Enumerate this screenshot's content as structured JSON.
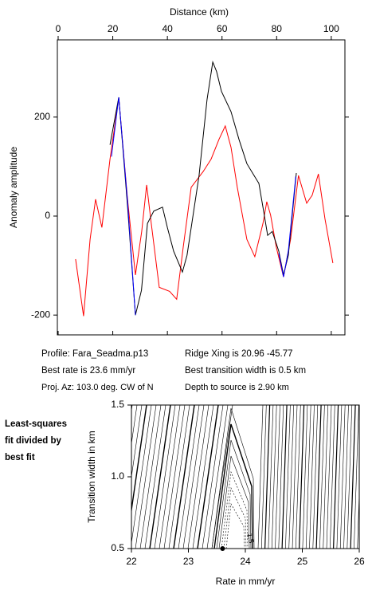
{
  "chart_data": [
    {
      "type": "line",
      "x_label": "Distance (km)",
      "y_label": "Anomaly amplitude",
      "xlim": [
        0,
        105
      ],
      "xticks": [
        0,
        20,
        40,
        60,
        80,
        100
      ],
      "ylim": [
        -240,
        356
      ],
      "yticks": [
        -200,
        0,
        200
      ],
      "series": [
        {
          "color": "#ff0000",
          "x": [
            6.4,
            9.3,
            11.7,
            13.7,
            16,
            19,
            22.2,
            25.4,
            28.3,
            30.6,
            32.4,
            34.1,
            37,
            40.8,
            43.4,
            45.8,
            48.7,
            53.1,
            56,
            58.9,
            61.2,
            63.3,
            65.6,
            69.1,
            72,
            75,
            76.4,
            77.8,
            79.9,
            82.5,
            85.1,
            88,
            91,
            93,
            95.3,
            97.7,
            100.6
          ],
          "values": [
            -87,
            -202,
            -47,
            34,
            -23,
            115,
            239,
            34,
            -119,
            -31,
            63,
            -15,
            -144,
            -152,
            -168,
            -63,
            58,
            90,
            115,
            155,
            182,
            139,
            58,
            -47,
            -82,
            -15,
            29,
            2,
            -63,
            -123,
            -47,
            82,
            26,
            42,
            85,
            -6,
            -95
          ]
        },
        {
          "color": "#000000",
          "x": [
            19,
            22.2,
            25.4,
            28.3,
            30.5,
            32.7,
            35,
            38.2,
            40,
            42.3,
            45.5,
            47.2,
            51.6,
            54.5,
            56.6,
            58,
            59.8,
            63.3,
            66.2,
            69.1,
            71.4,
            73.5,
            75,
            76.7,
            78.4,
            80.8,
            82.5,
            84.3,
            87.2
          ],
          "values": [
            144,
            240,
            20,
            -200,
            -150,
            -15,
            10,
            18,
            -23,
            -71,
            -113,
            -79,
            82,
            235,
            311,
            292,
            252,
            211,
            155,
            106,
            85,
            66,
            18,
            -39,
            -31,
            -71,
            -119,
            -79,
            87
          ]
        },
        {
          "color": "#0000ff",
          "x": [
            19.5,
            22.2,
            25.4,
            28.3
          ],
          "values": [
            120,
            240,
            30,
            -200
          ]
        },
        {
          "color": "#0000ff",
          "x": [
            80.8,
            82.5,
            84.3,
            87
          ],
          "values": [
            -75,
            -123,
            -70,
            80
          ]
        }
      ]
    },
    {
      "type": "contour",
      "x_label": "Rate in mm/yr",
      "y_label": "Transition width in km",
      "xlim": [
        22,
        26
      ],
      "xticks": [
        22,
        23,
        24,
        25,
        26
      ],
      "ylim": [
        0.5,
        1.5
      ],
      "yticks": [
        0.5,
        {
          "value": 1,
          "label": "1.0"
        },
        1.5
      ],
      "best_fit": {
        "x": 23.6,
        "y": 0.5
      },
      "contour_label": 1.5
    }
  ],
  "info": {
    "profile": "Profile: Fara_Seadma.p13",
    "ridge": "Ridge Xing is 20.96 -45.77",
    "rate": "Best rate is 23.6 mm/yr",
    "width": "Best transition width is 0.5 km",
    "azimuth": "Proj. Az: 103.0 deg. CW of N",
    "depth": "Depth to source is   2.90 km"
  },
  "side_label": [
    "Least-squares",
    "fit divided by",
    "best fit"
  ]
}
